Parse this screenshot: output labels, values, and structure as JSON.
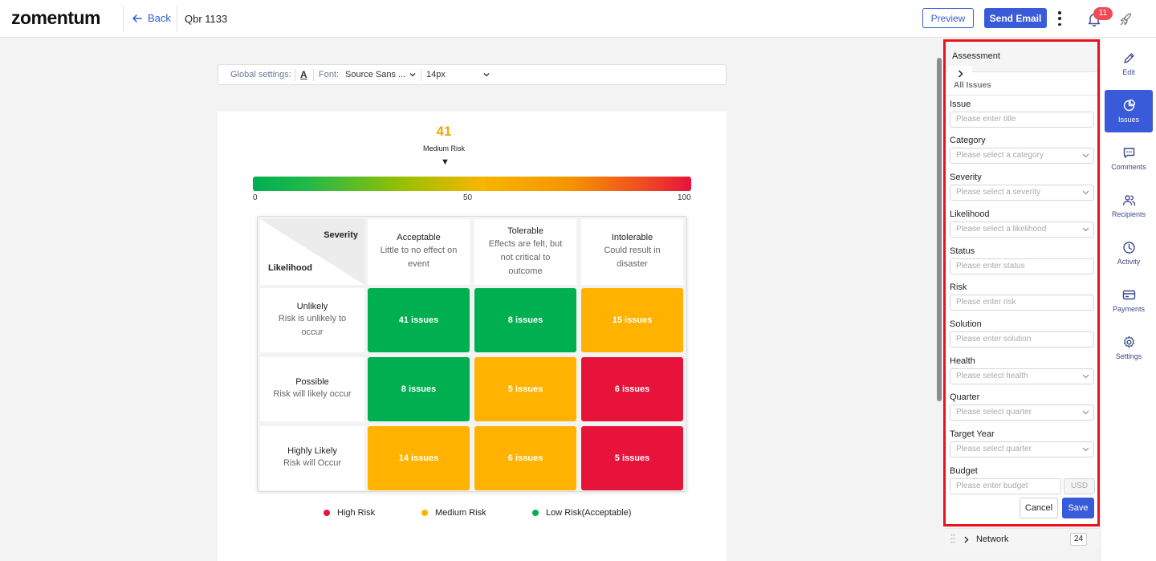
{
  "header": {
    "logo": "zomentum",
    "back_label": "Back",
    "doc_title": "Qbr 1133",
    "preview_label": "Preview",
    "send_label": "Send Email",
    "notification_count": "11"
  },
  "global_settings": {
    "label": "Global settings:",
    "text_format_glyph": "A",
    "font_label": "Font:",
    "font_value": "Source Sans ...",
    "size_value": "14px"
  },
  "risk": {
    "score": "41",
    "level": "Medium Risk",
    "pointer": "▼",
    "ticks": [
      "0",
      "50",
      "100"
    ]
  },
  "matrix": {
    "corner_severity": "Severity",
    "corner_likelihood": "Likelihood",
    "columns": [
      {
        "title": "Acceptable",
        "desc": "Little to no effect on event"
      },
      {
        "title": "Tolerable",
        "desc": "Effects are felt, but not critical to outcome"
      },
      {
        "title": "Intolerable",
        "desc": "Could result in disaster"
      }
    ],
    "rows": [
      {
        "title": "Unlikely",
        "desc": "Risk is unlikely to occur",
        "cells": [
          "41 issues",
          "8 issues",
          "15 issues"
        ]
      },
      {
        "title": "Possible",
        "desc": "Risk will likely occur",
        "cells": [
          "8 issues",
          "5 issues",
          "6 issues"
        ]
      },
      {
        "title": "Highly Likely",
        "desc": "Risk will Occur",
        "cells": [
          "14 issues",
          "6 issues",
          "5 issues"
        ]
      }
    ],
    "colors": {
      "green": "#00b050",
      "amber": "#ffb300",
      "red": "#e8133a"
    }
  },
  "legend": [
    {
      "label": "High Risk",
      "color": "#e8133a"
    },
    {
      "label": "Medium Risk",
      "color": "#ffb300"
    },
    {
      "label": "Low Risk(Acceptable)",
      "color": "#00b050"
    }
  ],
  "panel": {
    "title": "Assessment",
    "all_issues": "All Issues",
    "fields": {
      "issue": {
        "label": "Issue",
        "placeholder": "Please enter title"
      },
      "category": {
        "label": "Category",
        "placeholder": "Please select a category"
      },
      "severity": {
        "label": "Severity",
        "placeholder": "Please select a severity"
      },
      "likelihood": {
        "label": "Likelihood",
        "placeholder": "Please select a likelihood"
      },
      "status": {
        "label": "Status",
        "placeholder": "Please enter status"
      },
      "risk": {
        "label": "Risk",
        "placeholder": "Please enter risk"
      },
      "solution": {
        "label": "Solution",
        "placeholder": "Please enter solution"
      },
      "health": {
        "label": "Health",
        "placeholder": "Please select health"
      },
      "quarter": {
        "label": "Quarter",
        "placeholder": "Please select quarter"
      },
      "target_year": {
        "label": "Target Year",
        "placeholder": "Please select quarter"
      },
      "budget": {
        "label": "Budget",
        "placeholder": "Please enter budget",
        "currency": "USD"
      }
    },
    "cancel_label": "Cancel",
    "save_label": "Save"
  },
  "network": {
    "label": "Network",
    "count": "24"
  },
  "sidebar": {
    "items": [
      {
        "label": "Edit",
        "icon": "pencil-icon"
      },
      {
        "label": "Issues",
        "icon": "pie-chart-icon"
      },
      {
        "label": "Comments",
        "icon": "comment-icon"
      },
      {
        "label": "Recipients",
        "icon": "people-icon"
      },
      {
        "label": "Activity",
        "icon": "clock-icon"
      },
      {
        "label": "Payments",
        "icon": "card-icon"
      },
      {
        "label": "Settings",
        "icon": "gear-icon"
      }
    ]
  }
}
